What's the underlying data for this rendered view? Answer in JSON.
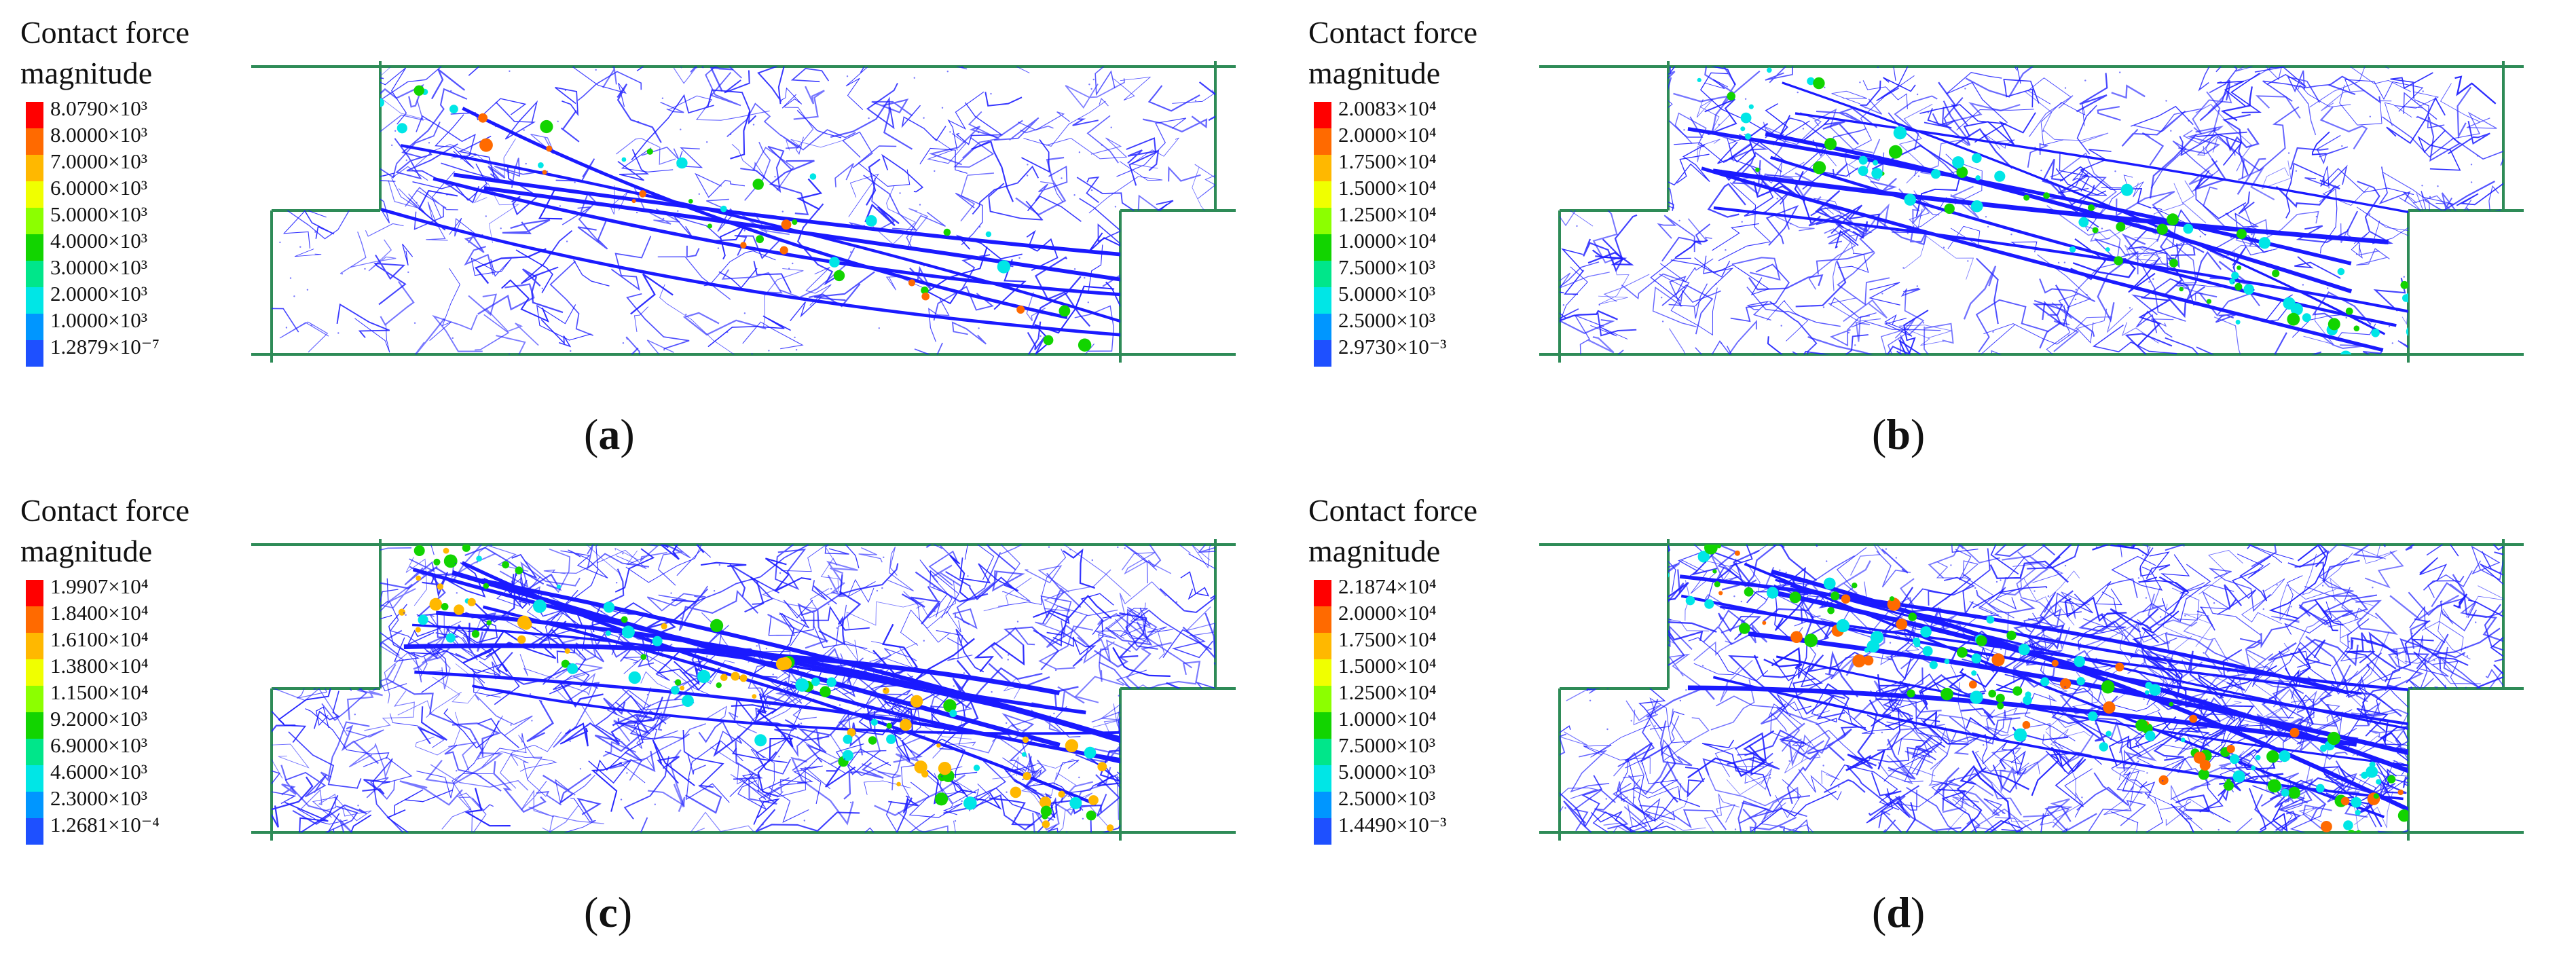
{
  "legend_colors": [
    "#ff0000",
    "#ff6a00",
    "#ffb800",
    "#f0ff00",
    "#8cff00",
    "#12d400",
    "#00e68a",
    "#00e6e6",
    "#0096ff",
    "#1e50ff",
    "#0000e6"
  ],
  "panels": [
    {
      "letter_open": "(",
      "letter": "a",
      "letter_close": ")",
      "legend_title_line1": "Contact force",
      "legend_title_line2": "magnitude",
      "legend_labels": [
        "8.0790×10³",
        "8.0000×10³",
        "7.0000×10³",
        "6.0000×10³",
        "5.0000×10³",
        "4.0000×10³",
        "3.0000×10³",
        "2.0000×10³",
        "1.0000×10³",
        "1.2879×10⁻⁷"
      ],
      "network_color": "#1a1aff",
      "hotspot_colors": [
        "#00e6e6",
        "#12d400",
        "#ff6a00"
      ],
      "network_density": "low"
    },
    {
      "letter_open": "(",
      "letter": "b",
      "letter_close": ")",
      "legend_title_line1": "Contact force",
      "legend_title_line2": "magnitude",
      "legend_labels": [
        "2.0083×10⁴",
        "2.0000×10⁴",
        "1.7500×10⁴",
        "1.5000×10⁴",
        "1.2500×10⁴",
        "1.0000×10⁴",
        "7.5000×10³",
        "5.0000×10³",
        "2.5000×10³",
        "2.9730×10⁻³"
      ],
      "network_color": "#1a1aff",
      "hotspot_colors": [
        "#00e6e6",
        "#12d400"
      ],
      "network_density": "medium"
    },
    {
      "letter_open": "(",
      "letter": "c",
      "letter_close": ")",
      "legend_title_line1": "Contact force",
      "legend_title_line2": "magnitude",
      "legend_labels": [
        "1.9907×10⁴",
        "1.8400×10⁴",
        "1.6100×10⁴",
        "1.3800×10⁴",
        "1.1500×10⁴",
        "9.2000×10³",
        "6.9000×10³",
        "4.6000×10³",
        "2.3000×10³",
        "1.2681×10⁻⁴"
      ],
      "network_color": "#1a1aff",
      "hotspot_colors": [
        "#00e6e6",
        "#12d400",
        "#ffb800"
      ],
      "network_density": "high"
    },
    {
      "letter_open": "(",
      "letter": "d",
      "letter_close": ")",
      "legend_title_line1": "Contact force",
      "legend_title_line2": "magnitude",
      "legend_labels": [
        "2.1874×10⁴",
        "2.0000×10⁴",
        "1.7500×10⁴",
        "1.5000×10⁴",
        "1.2500×10⁴",
        "1.0000×10⁴",
        "7.5000×10³",
        "5.0000×10³",
        "2.5000×10³",
        "1.4490×10⁻³"
      ],
      "network_color": "#1a1aff",
      "hotspot_colors": [
        "#00e6e6",
        "#12d400",
        "#ff6a00"
      ],
      "network_density": "very-high"
    }
  ]
}
